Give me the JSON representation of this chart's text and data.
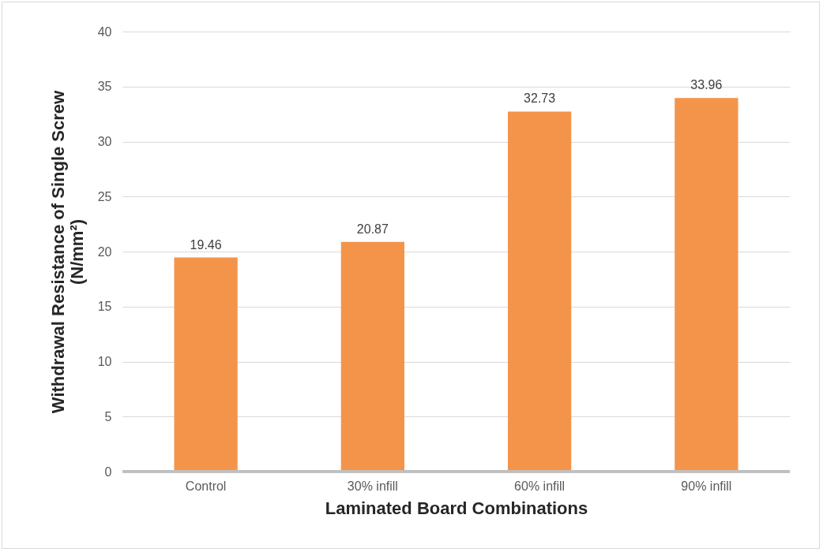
{
  "chart_data": {
    "type": "bar",
    "xlabel": "Laminated Board Combinations",
    "ylabel": "Withdrawal Resistance of Single Screw\n(N/mm²)",
    "categories": [
      "Control",
      "30% infill",
      "60% infill",
      "90% infill"
    ],
    "values": [
      19.46,
      20.87,
      32.73,
      33.96
    ],
    "color": "#f4944a",
    "ylim": [
      0,
      40
    ],
    "yticks": [
      0,
      5,
      10,
      15,
      20,
      25,
      30,
      35,
      40
    ],
    "grid": "y",
    "data_labels": true
  }
}
